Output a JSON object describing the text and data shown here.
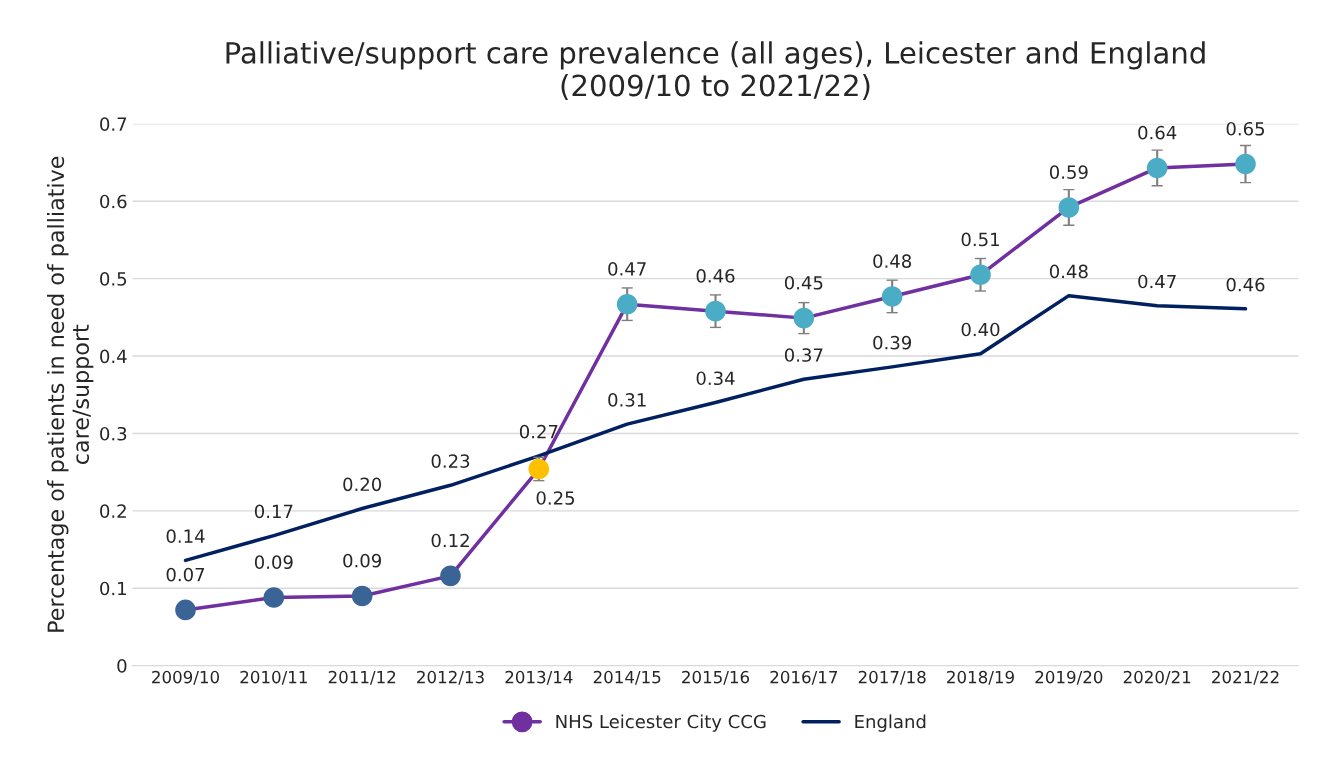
{
  "chart_data": {
    "type": "line",
    "title": "Palliative/support care prevalence (all ages), Leicester and England\n(2009/10 to 2021/22)",
    "ylabel": "Percentage of patients in need of palliative\ncare/support",
    "categories": [
      "2009/10",
      "2010/11",
      "2011/12",
      "2012/13",
      "2013/14",
      "2014/15",
      "2015/16",
      "2016/17",
      "2017/18",
      "2018/19",
      "2019/20",
      "2020/21",
      "2021/22"
    ],
    "series": [
      {
        "name": "NHS Leicester City CCG",
        "color": "#7030a0",
        "marker": "circle",
        "values": [
          0.072,
          0.088,
          0.09,
          0.116,
          0.254,
          0.467,
          0.458,
          0.449,
          0.477,
          0.505,
          0.592,
          0.643,
          0.648
        ],
        "colors": [
          "#3a6496",
          "#3a6496",
          "#3a6496",
          "#3a6496",
          "#ffc000",
          "#4bacc6",
          "#4bacc6",
          "#4bacc6",
          "#4bacc6",
          "#4bacc6",
          "#4bacc6",
          "#4bacc6",
          "#4bacc6"
        ],
        "errors": [
          null,
          null,
          null,
          null,
          0.015,
          0.021,
          0.021,
          0.02,
          0.021,
          0.021,
          0.023,
          0.023,
          0.024
        ],
        "value_labels": [
          "0.07",
          "0.09",
          "0.09",
          "0.12",
          "0.25",
          "0.47",
          "0.46",
          "0.45",
          "0.48",
          "0.51",
          "0.59",
          "0.64",
          "0.65"
        ]
      },
      {
        "name": "England",
        "color": "#002060",
        "marker": "none",
        "values": [
          0.136,
          0.168,
          0.203,
          0.233,
          0.271,
          0.312,
          0.34,
          0.37,
          0.386,
          0.403,
          0.478,
          0.465,
          0.461
        ],
        "value_labels": [
          "0.14",
          "0.17",
          "0.20",
          "0.23",
          "0.27",
          "0.31",
          "0.34",
          "0.37",
          "0.39",
          "0.40",
          "0.48",
          "0.47",
          "0.46"
        ]
      }
    ],
    "ylim": [
      0,
      0.7
    ],
    "yticks": [
      0,
      0.1,
      0.2,
      0.3,
      0.4,
      0.5,
      0.6,
      0.7
    ],
    "grid": "y",
    "legend": "bottom",
    "line_style": "solid"
  }
}
